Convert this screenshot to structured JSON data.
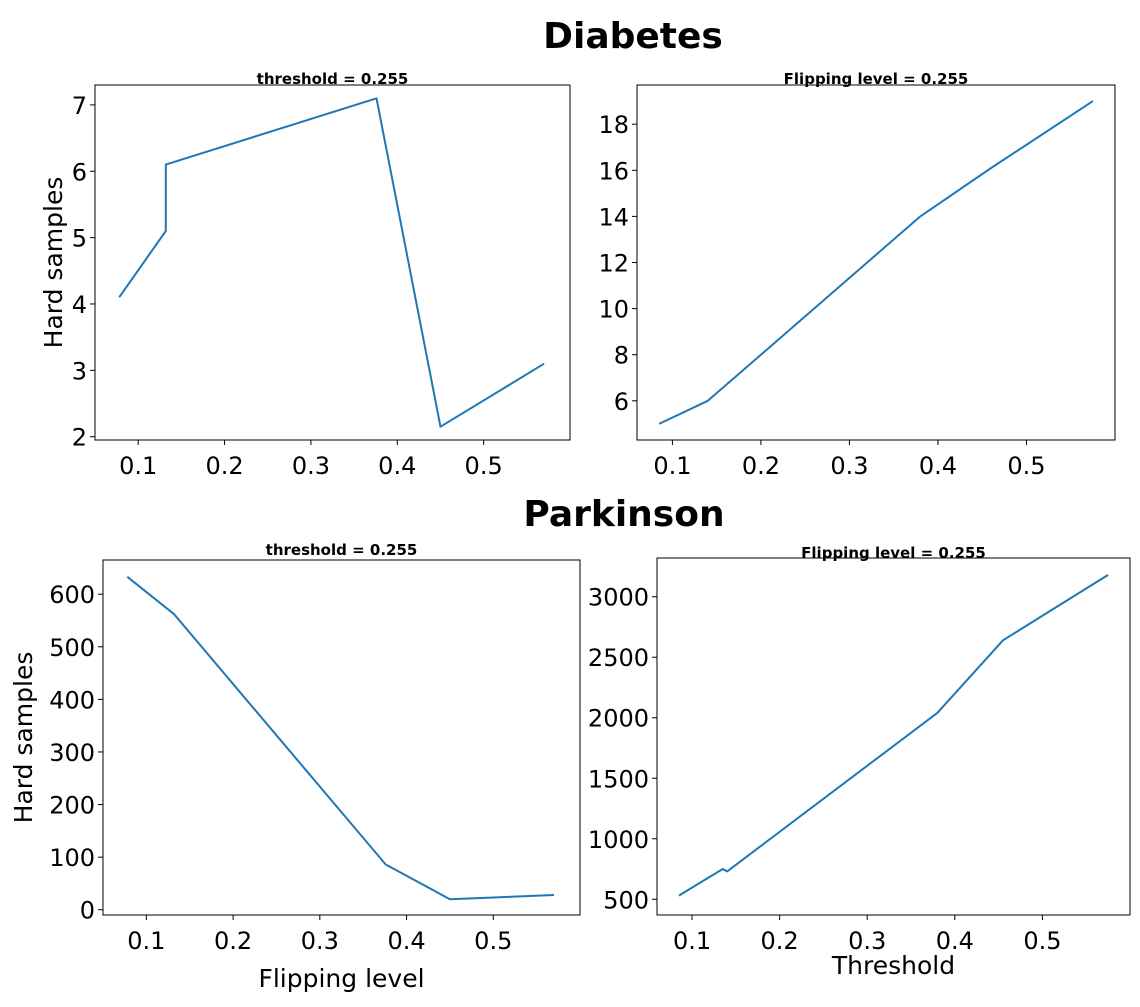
{
  "figure": {
    "group_titles": [
      "Diabetes",
      "Parkinson"
    ]
  },
  "chart_data": [
    {
      "type": "line",
      "group": "Diabetes",
      "title": "threshold = 0.255",
      "xlabel": "",
      "ylabel": "Hard samples",
      "x": [
        0.078,
        0.132,
        0.132,
        0.376,
        0.45,
        0.57
      ],
      "y": [
        4.1,
        5.1,
        6.1,
        7.1,
        2.15,
        3.1
      ],
      "xlim": [
        0.05,
        0.6
      ],
      "ylim": [
        1.95,
        7.3
      ],
      "xticks": [
        0.1,
        0.2,
        0.3,
        0.4,
        0.5
      ],
      "xticklabels": [
        "0.1",
        "0.2",
        "0.3",
        "0.4",
        "0.5"
      ],
      "yticks": [
        2,
        3,
        4,
        5,
        6,
        7
      ],
      "yticklabels": [
        "2",
        "3",
        "4",
        "5",
        "6",
        "7"
      ],
      "grid": false
    },
    {
      "type": "line",
      "group": "Diabetes",
      "title": "Flipping level = 0.255",
      "xlabel": "",
      "ylabel": "",
      "x": [
        0.085,
        0.14,
        0.38,
        0.46,
        0.575
      ],
      "y": [
        5.0,
        6.0,
        14.0,
        16.1,
        19.0
      ],
      "xlim": [
        0.06,
        0.6
      ],
      "ylim": [
        4.3,
        19.7
      ],
      "xticks": [
        0.1,
        0.2,
        0.3,
        0.4,
        0.5
      ],
      "xticklabels": [
        "0.1",
        "0.2",
        "0.3",
        "0.4",
        "0.5"
      ],
      "yticks": [
        6,
        8,
        10,
        12,
        14,
        16,
        18
      ],
      "yticklabels": [
        "6",
        "8",
        "10",
        "12",
        "14",
        "16",
        "18"
      ],
      "grid": false
    },
    {
      "type": "line",
      "group": "Parkinson",
      "title": "threshold = 0.255",
      "xlabel": "Flipping level",
      "ylabel": "Hard samples",
      "x": [
        0.078,
        0.132,
        0.376,
        0.45,
        0.57
      ],
      "y": [
        633,
        562,
        86,
        20,
        28
      ],
      "xlim": [
        0.05,
        0.6
      ],
      "ylim": [
        -10,
        665
      ],
      "xticks": [
        0.1,
        0.2,
        0.3,
        0.4,
        0.5
      ],
      "xticklabels": [
        "0.1",
        "0.2",
        "0.3",
        "0.4",
        "0.5"
      ],
      "yticks": [
        0,
        100,
        200,
        300,
        400,
        500,
        600
      ],
      "yticklabels": [
        "0",
        "100",
        "200",
        "300",
        "400",
        "500",
        "600"
      ],
      "grid": false
    },
    {
      "type": "line",
      "group": "Parkinson",
      "title": "Flipping level = 0.255",
      "xlabel": "Threshold",
      "ylabel": "",
      "x": [
        0.085,
        0.135,
        0.14,
        0.38,
        0.455,
        0.575
      ],
      "y": [
        530,
        750,
        730,
        2040,
        2640,
        3180
      ],
      "xlim": [
        0.06,
        0.6
      ],
      "ylim": [
        370,
        3320
      ],
      "xticks": [
        0.1,
        0.2,
        0.3,
        0.4,
        0.5
      ],
      "xticklabels": [
        "0.1",
        "0.2",
        "0.3",
        "0.4",
        "0.5"
      ],
      "yticks": [
        500,
        1000,
        1500,
        2000,
        2500,
        3000
      ],
      "yticklabels": [
        "500",
        "1000",
        "1500",
        "2000",
        "2500",
        "3000"
      ],
      "grid": false
    }
  ]
}
